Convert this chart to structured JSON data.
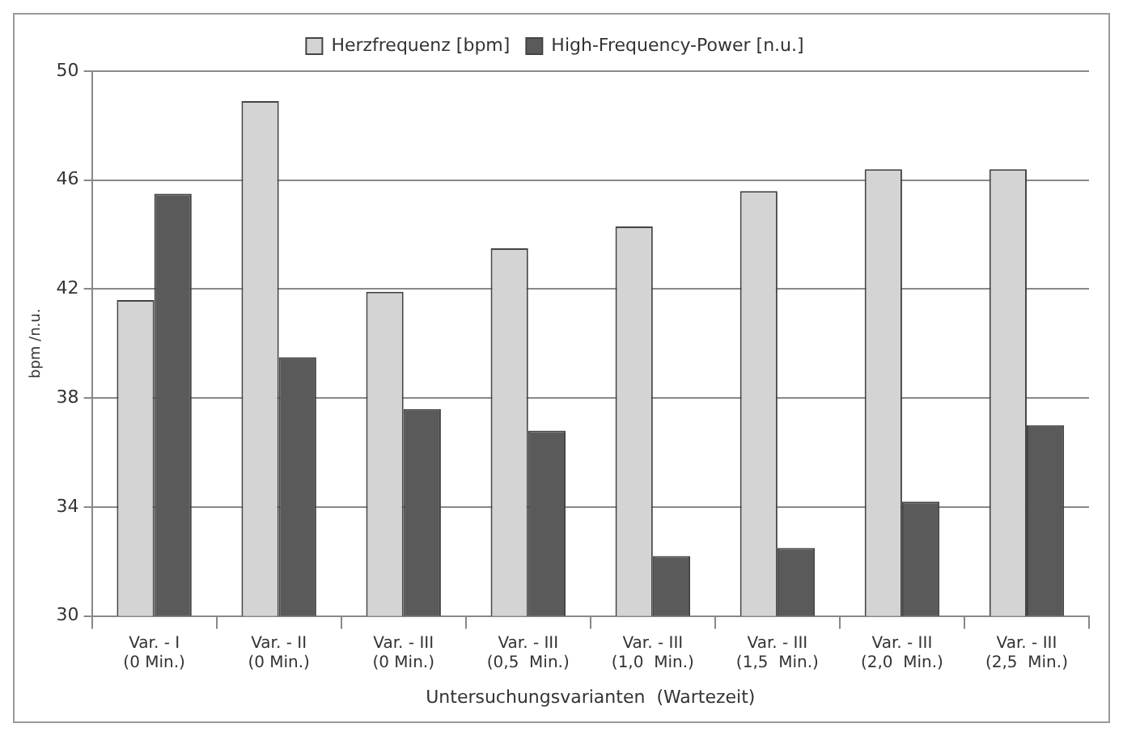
{
  "chart_data": {
    "type": "bar",
    "xlabel": "Untersuchungsvarianten  (Wartezeit)",
    "ylabel": "bpm /n.u.",
    "categories": [
      "Var. - I\n(0 Min.)",
      "Var. - II\n(0 Min.)",
      "Var. - III\n(0 Min.)",
      "Var. - III\n(0,5  Min.)",
      "Var. - III\n(1,0  Min.)",
      "Var. - III\n(1,5  Min.)",
      "Var. - III\n(2,0  Min.)",
      "Var. - III\n(2,5  Min.)"
    ],
    "series": [
      {
        "name": "Herzfrequenz [bpm]",
        "color": "#d4d4d4",
        "values": [
          41.6,
          48.9,
          41.9,
          43.5,
          44.3,
          45.6,
          46.4,
          46.4
        ]
      },
      {
        "name": "High-Frequency-Power [n.u.]",
        "color": "#5a5a5a",
        "values": [
          45.5,
          39.5,
          37.6,
          36.8,
          32.2,
          32.5,
          34.2,
          37.0
        ]
      }
    ],
    "ylim": [
      30,
      50
    ],
    "yticks": [
      30,
      34,
      38,
      42,
      46,
      50
    ],
    "grid": "y",
    "legend": "top"
  }
}
